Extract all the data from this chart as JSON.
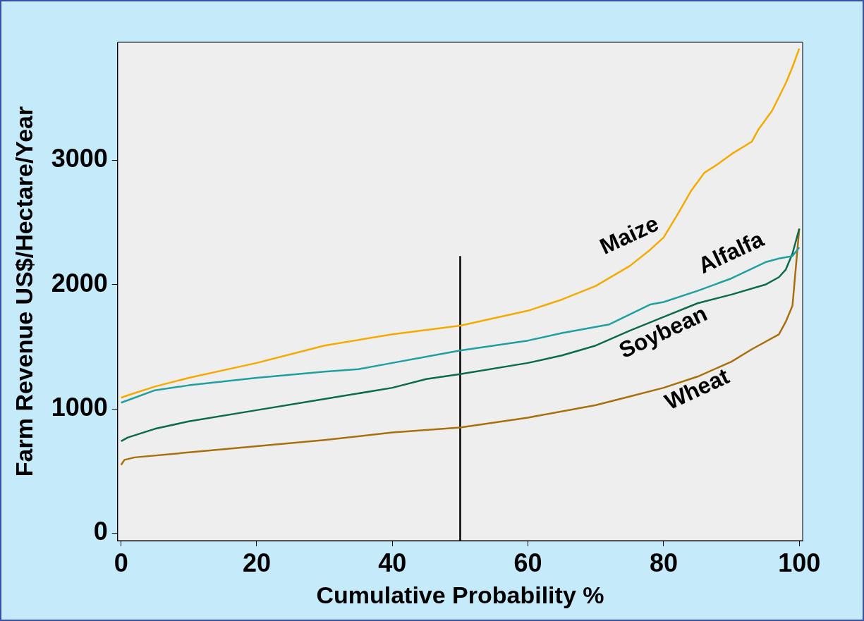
{
  "chart_data": {
    "type": "line",
    "xlabel": "Cumulative Probability %",
    "ylabel": "Farm Revenue US$/Hectare/Year",
    "xlim": [
      -0.5,
      100.5
    ],
    "ylim": [
      -60,
      3950
    ],
    "xticks": [
      0,
      20,
      40,
      60,
      80,
      100
    ],
    "yticks": [
      0,
      1000,
      2000,
      3000
    ],
    "grid": false,
    "legend": false,
    "marker": "none",
    "line_style": "solid",
    "series": [
      {
        "name": "Maize",
        "color": "#f5aa00",
        "x": [
          0,
          1,
          5,
          10,
          20,
          30,
          40,
          50,
          60,
          65,
          70,
          75,
          78,
          80,
          82,
          84,
          86,
          88,
          90,
          93,
          94,
          96,
          98,
          99,
          100
        ],
        "values": [
          1090,
          1110,
          1180,
          1250,
          1370,
          1510,
          1600,
          1670,
          1790,
          1880,
          1990,
          2150,
          2280,
          2380,
          2560,
          2750,
          2900,
          2970,
          3050,
          3150,
          3250,
          3400,
          3620,
          3750,
          3900
        ]
      },
      {
        "name": "Alfalfa",
        "color": "#1fa0a0",
        "x": [
          0,
          1,
          5,
          10,
          15,
          20,
          30,
          35,
          40,
          50,
          60,
          65,
          70,
          72,
          75,
          78,
          80,
          85,
          90,
          95,
          97,
          99,
          100
        ],
        "values": [
          1050,
          1070,
          1150,
          1190,
          1220,
          1250,
          1300,
          1320,
          1370,
          1470,
          1550,
          1610,
          1660,
          1680,
          1760,
          1840,
          1860,
          1950,
          2050,
          2180,
          2210,
          2230,
          2300
        ]
      },
      {
        "name": "Soybean",
        "color": "#0c6b4a",
        "x": [
          0,
          1,
          5,
          10,
          20,
          30,
          40,
          45,
          50,
          60,
          65,
          70,
          75,
          80,
          85,
          90,
          95,
          97,
          98,
          99,
          100
        ],
        "values": [
          740,
          770,
          840,
          900,
          990,
          1080,
          1170,
          1240,
          1280,
          1370,
          1430,
          1510,
          1630,
          1740,
          1850,
          1920,
          2000,
          2060,
          2120,
          2250,
          2450
        ]
      },
      {
        "name": "Wheat",
        "color": "#a8700a",
        "x": [
          0,
          0.5,
          2,
          10,
          20,
          30,
          40,
          50,
          60,
          70,
          75,
          80,
          85,
          90,
          93,
          97,
          98,
          99,
          100
        ],
        "values": [
          550,
          590,
          610,
          650,
          700,
          750,
          810,
          850,
          930,
          1030,
          1100,
          1170,
          1260,
          1380,
          1480,
          1600,
          1700,
          1830,
          2450
        ]
      },
      {
        "color": "#000000",
        "x": [
          50,
          50
        ],
        "values": [
          -60,
          2230
        ]
      }
    ]
  }
}
